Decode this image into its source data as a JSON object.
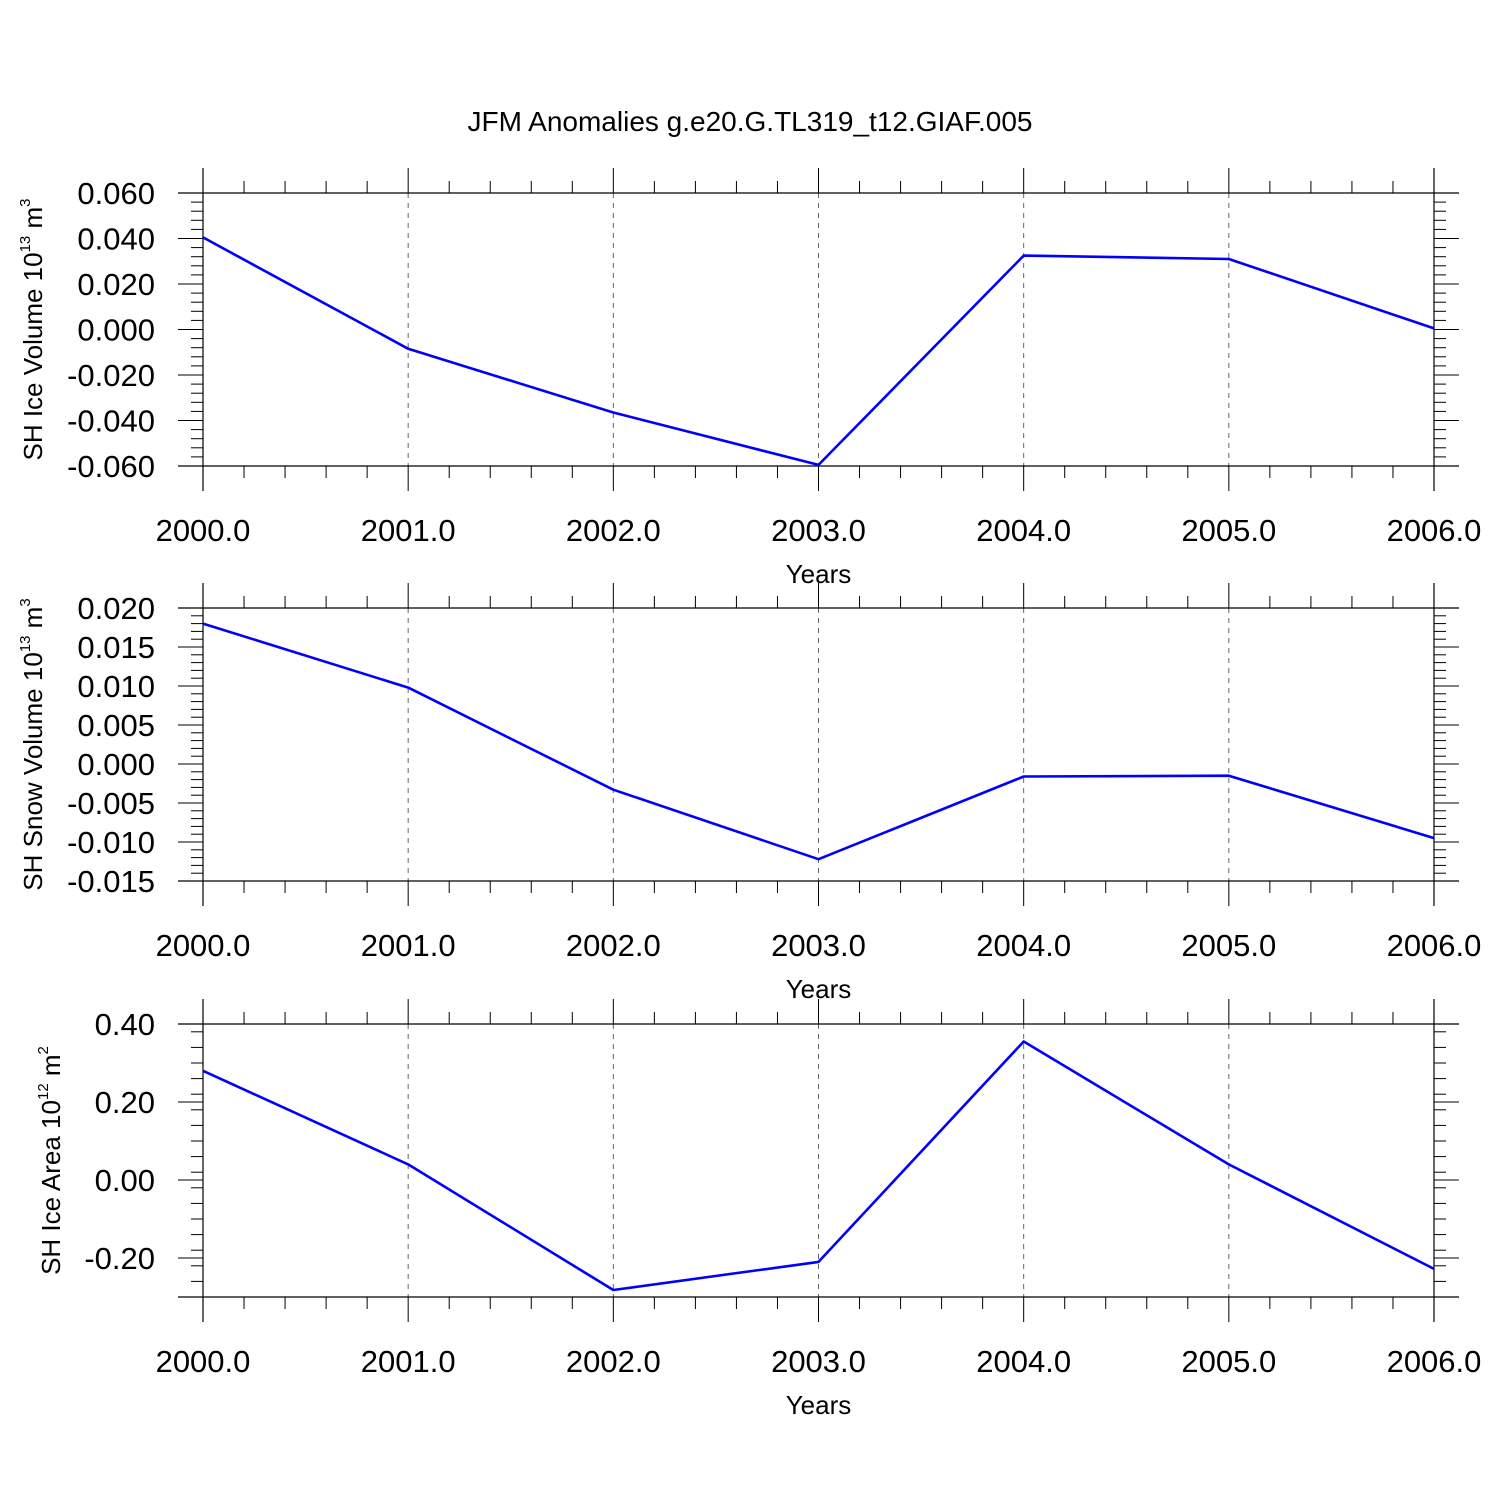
{
  "title": "JFM Anomalies g.e20.G.TL319_t12.GIAF.005",
  "colors": {
    "series": "#0000ff",
    "axis": "#000000",
    "grid": "#666666"
  },
  "chart_data": [
    {
      "type": "line",
      "x": [
        2000,
        2001,
        2002,
        2003,
        2004,
        2005,
        2006
      ],
      "xlim": [
        2000,
        2006
      ],
      "xticks": [
        "2000.0",
        "2001.0",
        "2002.0",
        "2003.0",
        "2004.0",
        "2005.0",
        "2006.0"
      ],
      "xlabel": "Years",
      "ylabel": {
        "base": "SH Ice Volume 10",
        "exp1": "13",
        "mid": " m",
        "exp2": "3"
      },
      "ylim": [
        -0.06,
        0.06
      ],
      "yticks": [
        0.06,
        0.04,
        0.02,
        0.0,
        -0.02,
        -0.04,
        -0.06
      ],
      "ytick_labels": [
        "0.060",
        "0.040",
        "0.020",
        "0.000",
        "-0.020",
        "-0.040",
        "-0.060"
      ],
      "series": [
        {
          "values": [
            0.0405,
            -0.0085,
            -0.0365,
            -0.0595,
            0.0325,
            0.031,
            0.0005
          ]
        }
      ],
      "grid": "vertical dashed at major x ticks"
    },
    {
      "type": "line",
      "x": [
        2000,
        2001,
        2002,
        2003,
        2004,
        2005,
        2006
      ],
      "xlim": [
        2000,
        2006
      ],
      "xticks": [
        "2000.0",
        "2001.0",
        "2002.0",
        "2003.0",
        "2004.0",
        "2005.0",
        "2006.0"
      ],
      "xlabel": "Years",
      "ylabel": {
        "base": "SH Snow Volume 10",
        "exp1": "13",
        "mid": " m",
        "exp2": "3"
      },
      "ylim": [
        -0.015,
        0.02
      ],
      "yticks": [
        0.02,
        0.015,
        0.01,
        0.005,
        0.0,
        -0.005,
        -0.01,
        -0.015
      ],
      "ytick_labels": [
        "0.020",
        "0.015",
        "0.010",
        "0.005",
        "0.000",
        "-0.005",
        "-0.010",
        "-0.015"
      ],
      "series": [
        {
          "values": [
            0.018,
            0.0098,
            -0.0033,
            -0.0122,
            -0.0016,
            -0.0015,
            -0.0095
          ]
        }
      ],
      "grid": "vertical dashed at major x ticks"
    },
    {
      "type": "line",
      "x": [
        2000,
        2001,
        2002,
        2003,
        2004,
        2005,
        2006
      ],
      "xlim": [
        2000,
        2006
      ],
      "xticks": [
        "2000.0",
        "2001.0",
        "2002.0",
        "2003.0",
        "2004.0",
        "2005.0",
        "2006.0"
      ],
      "xlabel": "Years",
      "ylabel": {
        "base": "SH Ice Area 10",
        "exp1": "12",
        "mid": " m",
        "exp2": "2"
      },
      "ylim": [
        -0.3,
        0.4
      ],
      "yticks": [
        0.4,
        0.2,
        0.0,
        -0.2
      ],
      "ytick_labels": [
        "0.40",
        "0.20",
        "0.00",
        "-0.20"
      ],
      "series": [
        {
          "values": [
            0.28,
            0.04,
            -0.282,
            -0.21,
            0.355,
            0.04,
            -0.228
          ]
        }
      ],
      "grid": "vertical dashed at major x ticks"
    }
  ]
}
